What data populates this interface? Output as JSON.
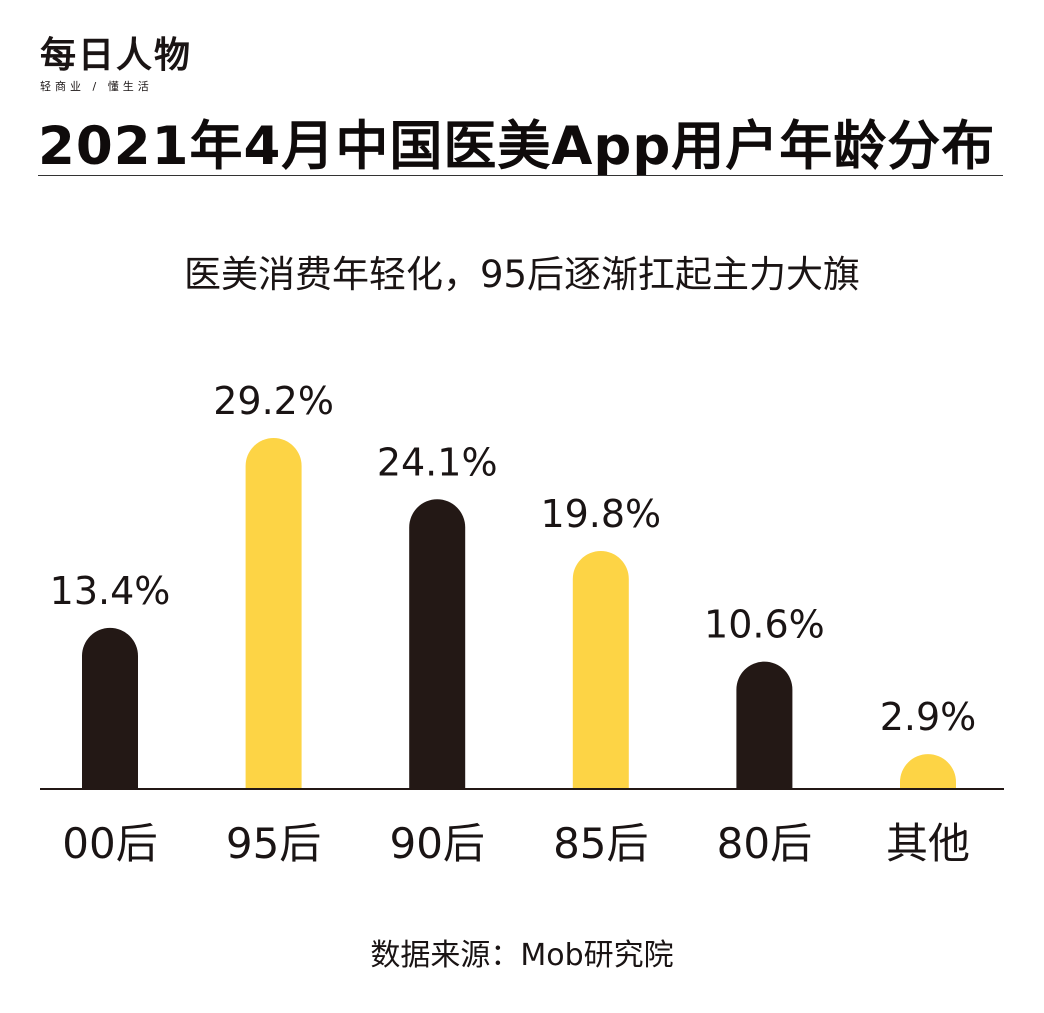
{
  "brand": {
    "name": "每日人物",
    "slogan": "轻商业 / 懂生活"
  },
  "header": {
    "title": "2021年4月中国医美App用户年龄分布",
    "subtitle": "医美消费年轻化，95后逐渐扛起主力大旗"
  },
  "footer": {
    "source": "数据来源：Mob研究院"
  },
  "colors": {
    "dark_bar": "#231815",
    "yellow_bar": "#FDD445",
    "text": "#1a1414"
  },
  "chart_data": {
    "type": "bar",
    "title": "2021年4月中国医美App用户年龄分布",
    "categories": [
      "00后",
      "95后",
      "90后",
      "85后",
      "80后",
      "其他"
    ],
    "values": [
      13.4,
      29.2,
      24.1,
      19.8,
      10.6,
      2.9
    ],
    "value_labels": [
      "13.4%",
      "29.2%",
      "24.1%",
      "19.8%",
      "10.6%",
      "2.9%"
    ],
    "bar_colors": [
      "#231815",
      "#FDD445",
      "#231815",
      "#FDD445",
      "#231815",
      "#FDD445"
    ],
    "unit": "%",
    "xlabel": "",
    "ylabel": "",
    "ylim": [
      0,
      29.2
    ],
    "grid": false,
    "legend": "none"
  }
}
